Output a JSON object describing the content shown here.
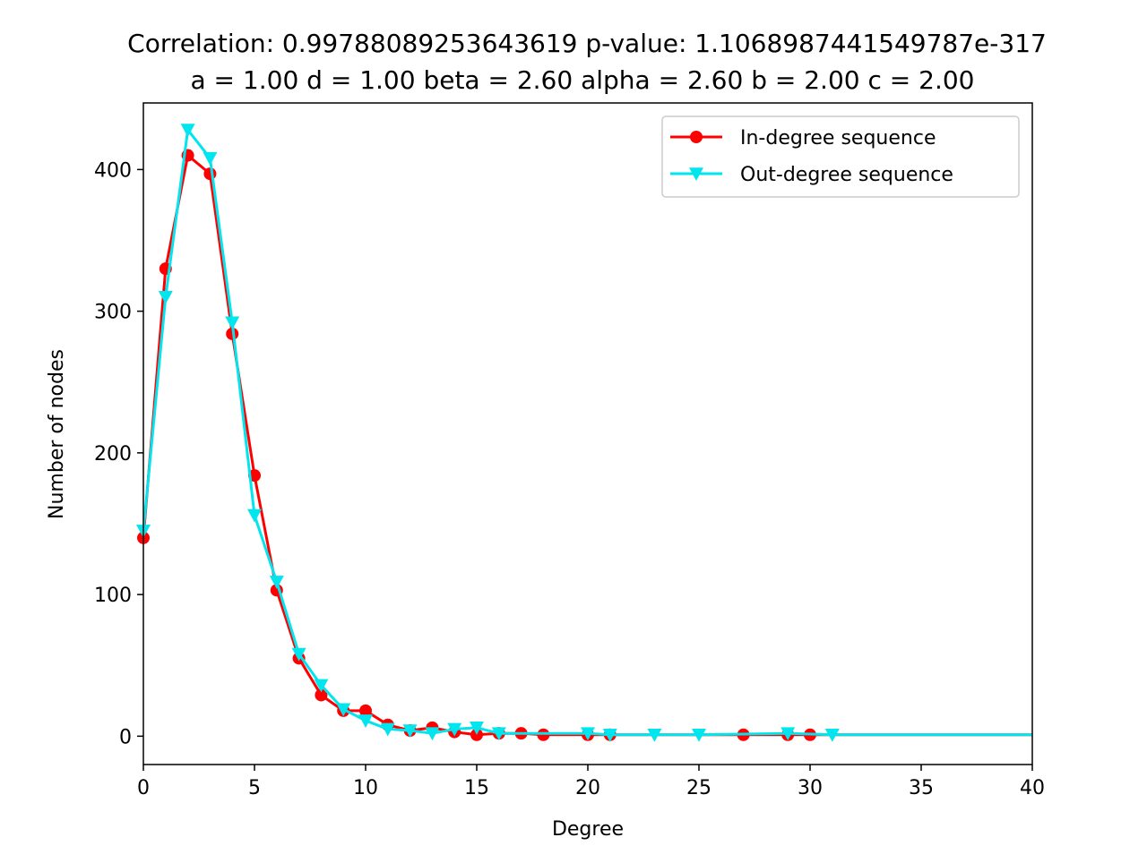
{
  "chart_data": {
    "type": "line",
    "title": "Correlation: 0.9978808925364361​9 p-value: 1.10689874415497​87e-317",
    "subtitle": "a = 1.00 d = 1.00 beta = 2.60 alpha = 2.60 b = 2.00 c = 2.00",
    "xlabel": "Degree",
    "ylabel": "Number of nodes",
    "xlim": [
      0,
      40
    ],
    "ylim": [
      -20,
      447
    ],
    "xticks": [
      0,
      5,
      10,
      15,
      20,
      25,
      30,
      35,
      40
    ],
    "yticks": [
      0,
      100,
      200,
      300,
      400
    ],
    "grid": false,
    "legend_position": "top-right",
    "series": [
      {
        "name": "In-degree sequence",
        "color": "#ff0000",
        "marker": "circle",
        "x": [
          0,
          1,
          2,
          3,
          4,
          5,
          6,
          7,
          8,
          9,
          10,
          11,
          12,
          13,
          14,
          15,
          16,
          17,
          18,
          20,
          21,
          27,
          29,
          30,
          40
        ],
        "y": [
          140,
          330,
          410,
          397,
          284,
          184,
          103,
          55,
          29,
          18,
          18,
          8,
          4,
          6,
          3,
          1,
          2,
          2,
          1,
          1,
          1,
          1,
          1,
          1,
          1
        ],
        "marker_x": [
          0,
          1,
          2,
          3,
          4,
          5,
          6,
          7,
          8,
          9,
          10,
          11,
          12,
          13,
          14,
          15,
          16,
          17,
          18,
          20,
          21,
          27,
          29,
          30
        ]
      },
      {
        "name": "Out-degree sequence",
        "color": "#00e5ee",
        "marker": "triangle-down",
        "x": [
          0,
          1,
          2,
          3,
          4,
          5,
          6,
          7,
          8,
          9,
          10,
          11,
          12,
          13,
          14,
          15,
          16,
          20,
          21,
          23,
          25,
          29,
          31,
          40
        ],
        "y": [
          145,
          310,
          428,
          408,
          292,
          156,
          109,
          58,
          36,
          19,
          11,
          5,
          4,
          2,
          5,
          6,
          2,
          2,
          1,
          1,
          1,
          2,
          1,
          1
        ],
        "marker_x": [
          0,
          1,
          2,
          3,
          4,
          5,
          6,
          7,
          8,
          9,
          10,
          11,
          12,
          13,
          14,
          15,
          16,
          20,
          21,
          23,
          25,
          29,
          31
        ]
      }
    ]
  }
}
